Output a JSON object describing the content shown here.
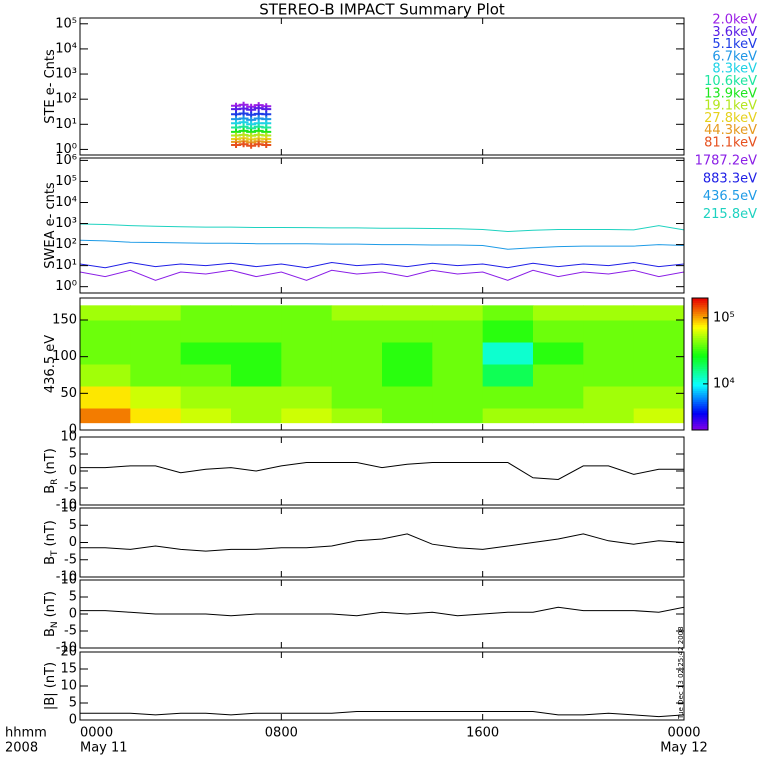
{
  "shared": {
    "title": "STEREO-B IMPACT Summary Plot",
    "xlim": [
      0,
      24
    ],
    "xticks": [
      {
        "value": 0,
        "label": "0000"
      },
      {
        "value": 8,
        "label": "0800"
      },
      {
        "value": 16,
        "label": "1600"
      },
      {
        "value": 24,
        "label": "0000"
      }
    ],
    "date_labels": [
      {
        "value": 0,
        "label": "May 11"
      },
      {
        "value": 24,
        "label": "May 12"
      }
    ],
    "left_labels": [
      "hhmm",
      "2008"
    ],
    "footnote": "Tue Dec 13 02:25:42 2008"
  },
  "chart_data": [
    {
      "type": "scatter",
      "ylabel": "STE e- Cnts",
      "log": true,
      "ylim": [
        0.6,
        170000
      ],
      "yticks": [
        {
          "value": 1,
          "label": "10⁰"
        },
        {
          "value": 10,
          "label": "10¹"
        },
        {
          "value": 100,
          "label": "10²"
        },
        {
          "value": 1000,
          "label": "10³"
        },
        {
          "value": 10000,
          "label": "10⁴"
        },
        {
          "value": 100000,
          "label": "10⁵"
        }
      ],
      "x": [
        6.2,
        6.5,
        6.8,
        7.1,
        7.4
      ],
      "series": [
        {
          "name": "2.0keV",
          "color": "#9a1ee6",
          "values": [
            55,
            60,
            50,
            58,
            52
          ]
        },
        {
          "name": "3.6keV",
          "color": "#5a1ee6",
          "values": [
            40,
            42,
            38,
            44,
            40
          ]
        },
        {
          "name": "5.1keV",
          "color": "#1e3ce6",
          "values": [
            25,
            27,
            24,
            26,
            25
          ]
        },
        {
          "name": "6.7keV",
          "color": "#1e96e6",
          "values": [
            16,
            17,
            15,
            17,
            16
          ]
        },
        {
          "name": "8.3keV",
          "color": "#1ed2e6",
          "values": [
            11,
            12,
            10,
            11,
            11
          ]
        },
        {
          "name": "10.6keV",
          "color": "#1ee6a0",
          "values": [
            7.5,
            8,
            7,
            8,
            7.5
          ]
        },
        {
          "name": "13.9keV",
          "color": "#1ee61e",
          "values": [
            5,
            5.5,
            5,
            5.5,
            5
          ]
        },
        {
          "name": "19.1keV",
          "color": "#b4e61e",
          "values": [
            3.6,
            3.8,
            3.5,
            3.8,
            3.6
          ]
        },
        {
          "name": "27.8keV",
          "color": "#e6d21e",
          "values": [
            2.6,
            2.8,
            2.5,
            2.7,
            2.6
          ]
        },
        {
          "name": "44.3keV",
          "color": "#e69a1e",
          "values": [
            2,
            2.1,
            1.9,
            2.1,
            2
          ]
        },
        {
          "name": "81.1keV",
          "color": "#e6501e",
          "values": [
            1.5,
            1.6,
            1.4,
            1.6,
            1.5
          ]
        }
      ]
    },
    {
      "type": "line",
      "ylabel": "SWEA e- cnts",
      "log": true,
      "ylim": [
        0.5,
        1300000
      ],
      "yticks": [
        {
          "value": 1,
          "label": "10⁰"
        },
        {
          "value": 10,
          "label": "10¹"
        },
        {
          "value": 100,
          "label": "10²"
        },
        {
          "value": 1000,
          "label": "10³"
        },
        {
          "value": 10000,
          "label": "10⁴"
        },
        {
          "value": 100000,
          "label": "10⁵"
        },
        {
          "value": 1000000,
          "label": "10⁶"
        }
      ],
      "x": [
        0,
        1,
        2,
        3,
        4,
        5,
        6,
        7,
        8,
        9,
        10,
        11,
        12,
        13,
        14,
        15,
        16,
        17,
        18,
        19,
        20,
        21,
        22,
        23,
        24
      ],
      "series": [
        {
          "name": "1787.2eV",
          "color": "#8a1ee6",
          "values": [
            5,
            3,
            6,
            2,
            5,
            4,
            6,
            3,
            5,
            2,
            6,
            4,
            5,
            3,
            6,
            4,
            5,
            2,
            6,
            3,
            5,
            4,
            6,
            3,
            5
          ]
        },
        {
          "name": "883.3eV",
          "color": "#1e1ee6",
          "values": [
            12,
            8,
            14,
            9,
            12,
            10,
            13,
            9,
            12,
            8,
            14,
            10,
            12,
            9,
            13,
            10,
            12,
            8,
            13,
            9,
            12,
            10,
            14,
            9,
            12
          ]
        },
        {
          "name": "436.5eV",
          "color": "#1e9be6",
          "values": [
            160,
            150,
            130,
            125,
            120,
            115,
            115,
            110,
            110,
            110,
            105,
            105,
            100,
            100,
            95,
            95,
            90,
            60,
            70,
            80,
            85,
            85,
            85,
            100,
            90
          ]
        },
        {
          "name": "215.8eV",
          "color": "#1ed2c0",
          "values": [
            950,
            900,
            800,
            750,
            700,
            680,
            680,
            650,
            650,
            640,
            620,
            620,
            600,
            600,
            580,
            560,
            520,
            420,
            480,
            520,
            520,
            520,
            500,
            800,
            500
          ]
        }
      ]
    },
    {
      "type": "heatmap",
      "ylabel": "436.5 eV",
      "ylim": [
        0,
        180
      ],
      "yticks": [
        0,
        50,
        100,
        150
      ],
      "clim": [
        2000,
        200000
      ],
      "cticks": [
        {
          "value": 10000,
          "label": "10⁴"
        },
        {
          "value": 100000,
          "label": "10⁵"
        }
      ],
      "x_edges": [
        0,
        2,
        4,
        6,
        8,
        10,
        12,
        14,
        16,
        18,
        20,
        22,
        24
      ],
      "y_edges": [
        10,
        30,
        60,
        90,
        120,
        150,
        170
      ],
      "z": [
        [
          120000,
          80000,
          60000,
          50000,
          60000,
          50000,
          40000,
          40000,
          50000,
          50000,
          50000,
          60000
        ],
        [
          80000,
          60000,
          50000,
          50000,
          50000,
          40000,
          40000,
          40000,
          40000,
          40000,
          50000,
          50000
        ],
        [
          50000,
          40000,
          40000,
          30000,
          40000,
          40000,
          30000,
          40000,
          20000,
          40000,
          40000,
          40000
        ],
        [
          40000,
          40000,
          30000,
          30000,
          40000,
          40000,
          30000,
          40000,
          12000,
          30000,
          40000,
          40000
        ],
        [
          40000,
          40000,
          40000,
          40000,
          40000,
          40000,
          40000,
          40000,
          30000,
          40000,
          40000,
          40000
        ],
        [
          50000,
          50000,
          40000,
          40000,
          40000,
          50000,
          50000,
          50000,
          40000,
          50000,
          50000,
          50000
        ]
      ]
    },
    {
      "type": "line",
      "ylabel": "B",
      "ylabel_sub": "R",
      "ylabel_unit": "(nT)",
      "ylim": [
        -10,
        10
      ],
      "yticks": [
        -10,
        -5,
        0,
        5,
        10
      ],
      "x": [
        0,
        1,
        2,
        3,
        4,
        5,
        6,
        7,
        8,
        9,
        10,
        11,
        12,
        13,
        14,
        15,
        16,
        17,
        18,
        19,
        20,
        21,
        22,
        23,
        24
      ],
      "series": [
        {
          "color": "#000000",
          "values": [
            1,
            1,
            1.5,
            1.5,
            -0.5,
            0.5,
            1,
            0,
            1.5,
            2.5,
            2.5,
            2.5,
            1,
            2,
            2.5,
            2.5,
            2.5,
            2.5,
            -2,
            -2.5,
            1.5,
            1.5,
            -1,
            0.5,
            0.5
          ]
        }
      ]
    },
    {
      "type": "line",
      "ylabel": "B",
      "ylabel_sub": "T",
      "ylabel_unit": "(nT)",
      "ylim": [
        -10,
        10
      ],
      "yticks": [
        -10,
        -5,
        0,
        5,
        10
      ],
      "x": [
        0,
        1,
        2,
        3,
        4,
        5,
        6,
        7,
        8,
        9,
        10,
        11,
        12,
        13,
        14,
        15,
        16,
        17,
        18,
        19,
        20,
        21,
        22,
        23,
        24
      ],
      "series": [
        {
          "color": "#000000",
          "values": [
            -1.5,
            -1.5,
            -2,
            -1,
            -2,
            -2.5,
            -2,
            -2,
            -1.5,
            -1.5,
            -1,
            0.5,
            1,
            2.5,
            -0.5,
            -1.5,
            -2,
            -1,
            0,
            1,
            2.5,
            0.5,
            -0.5,
            0.5,
            0
          ]
        }
      ]
    },
    {
      "type": "line",
      "ylabel": "B",
      "ylabel_sub": "N",
      "ylabel_unit": "(nT)",
      "ylim": [
        -10,
        10
      ],
      "yticks": [
        -10,
        -5,
        0,
        5,
        10
      ],
      "x": [
        0,
        1,
        2,
        3,
        4,
        5,
        6,
        7,
        8,
        9,
        10,
        11,
        12,
        13,
        14,
        15,
        16,
        17,
        18,
        19,
        20,
        21,
        22,
        23,
        24
      ],
      "series": [
        {
          "color": "#000000",
          "values": [
            1,
            1,
            0.5,
            0,
            0,
            0,
            -0.5,
            0,
            0,
            0,
            0,
            -0.5,
            0.5,
            0,
            0.5,
            -0.5,
            0,
            0.5,
            0.5,
            2,
            1,
            1,
            1,
            0.5,
            2
          ]
        }
      ]
    },
    {
      "type": "line",
      "ylabel": "|B| (nT)",
      "ylim": [
        0,
        20
      ],
      "yticks": [
        0,
        5,
        10,
        15,
        20
      ],
      "x": [
        0,
        1,
        2,
        3,
        4,
        5,
        6,
        7,
        8,
        9,
        10,
        11,
        12,
        13,
        14,
        15,
        16,
        17,
        18,
        19,
        20,
        21,
        22,
        23,
        24
      ],
      "series": [
        {
          "color": "#000000",
          "values": [
            2,
            2,
            2,
            1.5,
            2,
            2,
            1.5,
            2,
            2,
            2,
            2,
            2.5,
            2.5,
            2.5,
            2.5,
            2.5,
            2.5,
            2.5,
            2.5,
            1.5,
            1.5,
            2,
            1.5,
            1,
            1.5
          ]
        }
      ]
    }
  ]
}
